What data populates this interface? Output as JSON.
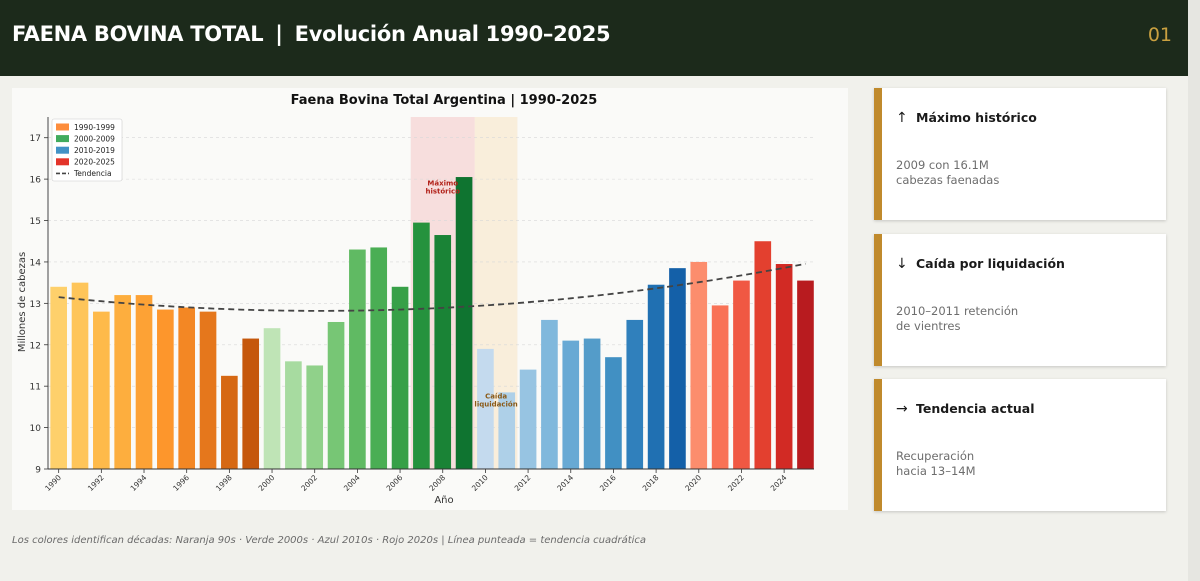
{
  "header": {
    "title_left": "FAENA BOVINA TOTAL",
    "separator": "|",
    "title_right": "Evolución Anual 1990–2025",
    "page_number": "01"
  },
  "chart_data": {
    "type": "bar",
    "title": "Faena Bovina Total Argentina  |  1990-2025",
    "xlabel": "Año",
    "ylabel": "Millones de cabezas",
    "ylim": [
      9,
      17.5
    ],
    "yticks": [
      9,
      10,
      11,
      12,
      13,
      14,
      15,
      16,
      17
    ],
    "xticks": [
      1990,
      1992,
      1994,
      1996,
      1998,
      2000,
      2002,
      2004,
      2006,
      2008,
      2010,
      2012,
      2014,
      2016,
      2018,
      2020,
      2022,
      2024
    ],
    "grid": true,
    "legend_position": "top-left",
    "legend": [
      {
        "label": "1990-1999",
        "color": "#fd8d3c",
        "kind": "patch"
      },
      {
        "label": "2000-2009",
        "color": "#41ab5d",
        "kind": "patch"
      },
      {
        "label": "2010-2019",
        "color": "#4292c6",
        "kind": "patch"
      },
      {
        "label": "2020-2025",
        "color": "#e3342a",
        "kind": "patch"
      },
      {
        "label": "Tendencia",
        "color": "#444444",
        "kind": "dashed-line"
      }
    ],
    "years": [
      1990,
      1991,
      1992,
      1993,
      1994,
      1995,
      1996,
      1997,
      1998,
      1999,
      2000,
      2001,
      2002,
      2003,
      2004,
      2005,
      2006,
      2007,
      2008,
      2009,
      2010,
      2011,
      2012,
      2013,
      2014,
      2015,
      2016,
      2017,
      2018,
      2019,
      2020,
      2021,
      2022,
      2023,
      2024,
      2025
    ],
    "values": [
      13.4,
      13.5,
      12.8,
      13.2,
      13.2,
      12.85,
      12.9,
      12.8,
      11.25,
      12.15,
      12.4,
      11.6,
      11.5,
      12.55,
      14.3,
      14.35,
      13.4,
      14.95,
      14.65,
      16.05,
      11.9,
      10.85,
      11.4,
      12.6,
      12.1,
      12.15,
      11.7,
      12.6,
      13.45,
      13.85,
      14.0,
      12.95,
      13.55,
      14.5,
      13.95,
      13.55
    ],
    "colors": [
      "#fed06b",
      "#fec55a",
      "#feba4a",
      "#fdae3e",
      "#fda235",
      "#fd962c",
      "#f38724",
      "#e5771c",
      "#d66813",
      "#c5570c",
      "#bfe4b6",
      "#a7dba0",
      "#90d18a",
      "#77c675",
      "#60ba63",
      "#4aae54",
      "#37a048",
      "#25923d",
      "#1a8336",
      "#0f7430",
      "#c4daee",
      "#aed0e8",
      "#97c4e2",
      "#80b8dc",
      "#68a9d4",
      "#549cc9",
      "#4190c3",
      "#3080bc",
      "#2070b2",
      "#1460a8",
      "#fc8d6d",
      "#f97256",
      "#f05843",
      "#e3402f",
      "#d22a24",
      "#b81b1f"
    ],
    "trend": {
      "label": "Tendencia",
      "type": "quadratic",
      "a": 0.0022,
      "b": -0.054,
      "c": 13.15
    },
    "shaded_regions": [
      {
        "from": 2007,
        "to": 2009,
        "color": "#f4c6c6",
        "label": "Máximo histórico",
        "label_color": "#b2221a"
      },
      {
        "from": 2010,
        "to": 2011,
        "color": "#f8e3c2",
        "label": "Caída liquidación",
        "label_color": "#8a5a18"
      }
    ]
  },
  "cards": [
    {
      "arrow": "↑",
      "title": "Máximo histórico",
      "line1": "2009 con 16.1M",
      "line2": "cabezas faenadas"
    },
    {
      "arrow": "↓",
      "title": "Caída por liquidación",
      "line1": "2010–2011 retención",
      "line2": "de vientres"
    },
    {
      "arrow": "→",
      "title": "Tendencia actual",
      "line1": "Recuperación",
      "line2": "hacia 13–14M"
    }
  ],
  "footer_note": "Los colores identifican décadas: Naranja 90s · Verde 2000s · Azul 2010s · Rojo 2020s  |  Línea punteada = tendencia cuadrática"
}
